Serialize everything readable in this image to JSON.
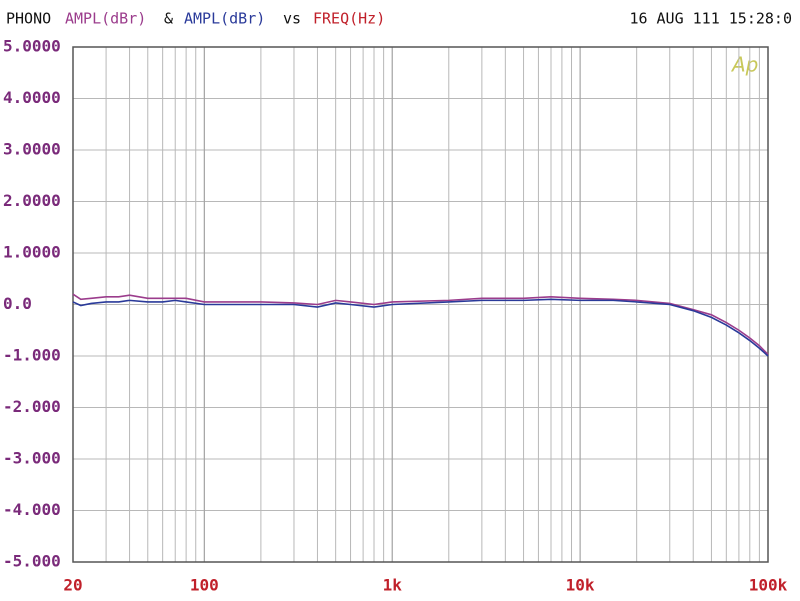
{
  "chart_data": {
    "type": "line",
    "prefix": "PHONO",
    "joiner": "&",
    "versus": "vs",
    "x_label": "FREQ(Hz)",
    "timestamp": "16 AUG 111 15:28:0",
    "logo": "Ap",
    "x": [
      20,
      22,
      25,
      30,
      35,
      40,
      50,
      60,
      70,
      80,
      100,
      150,
      200,
      300,
      400,
      500,
      600,
      800,
      1000,
      2000,
      3000,
      5000,
      7000,
      10000,
      15000,
      20000,
      30000,
      40000,
      50000,
      60000,
      70000,
      80000,
      90000,
      100000
    ],
    "series": [
      {
        "name": "AMPL(dBr)",
        "color": "#9b3c8c",
        "values": [
          0.2,
          0.1,
          0.12,
          0.15,
          0.15,
          0.18,
          0.12,
          0.12,
          0.12,
          0.12,
          0.05,
          0.05,
          0.05,
          0.03,
          0.0,
          0.08,
          0.05,
          0.0,
          0.05,
          0.08,
          0.12,
          0.12,
          0.15,
          0.12,
          0.1,
          0.08,
          0.02,
          -0.1,
          -0.2,
          -0.35,
          -0.5,
          -0.65,
          -0.8,
          -0.97
        ]
      },
      {
        "name": "AMPL(dBr)",
        "color": "#2a3a9a",
        "values": [
          0.05,
          -0.02,
          0.02,
          0.05,
          0.05,
          0.08,
          0.05,
          0.05,
          0.08,
          0.05,
          0.0,
          0.0,
          0.0,
          0.0,
          -0.05,
          0.03,
          0.0,
          -0.05,
          0.0,
          0.05,
          0.08,
          0.08,
          0.1,
          0.08,
          0.08,
          0.05,
          0.0,
          -0.12,
          -0.25,
          -0.4,
          -0.55,
          -0.7,
          -0.85,
          -1.0
        ]
      }
    ],
    "xlim": [
      20,
      100000
    ],
    "xscale": "log",
    "xticks": [
      20,
      100,
      {
        "value": 1000,
        "label": "1k"
      },
      {
        "value": 10000,
        "label": "10k"
      },
      {
        "value": 100000,
        "label": "100k"
      }
    ],
    "ylim": [
      -5,
      5
    ],
    "yticks": [
      {
        "value": 5,
        "label": "5.0000"
      },
      {
        "value": 4,
        "label": "4.0000"
      },
      {
        "value": 3,
        "label": "3.0000"
      },
      {
        "value": 2,
        "label": "2.0000"
      },
      {
        "value": 1,
        "label": "1.0000"
      },
      {
        "value": 0,
        "label": "0.0"
      },
      {
        "value": -1,
        "label": "-1.000"
      },
      {
        "value": -2,
        "label": "-2.000"
      },
      {
        "value": -3,
        "label": "-3.000"
      },
      {
        "value": -4,
        "label": "-4.000"
      },
      {
        "value": -5,
        "label": "-5.000"
      }
    ],
    "grid": true,
    "minor_grid": true,
    "y_tick_color": "#7a2a7a",
    "x_tick_color": "#c0202a"
  }
}
